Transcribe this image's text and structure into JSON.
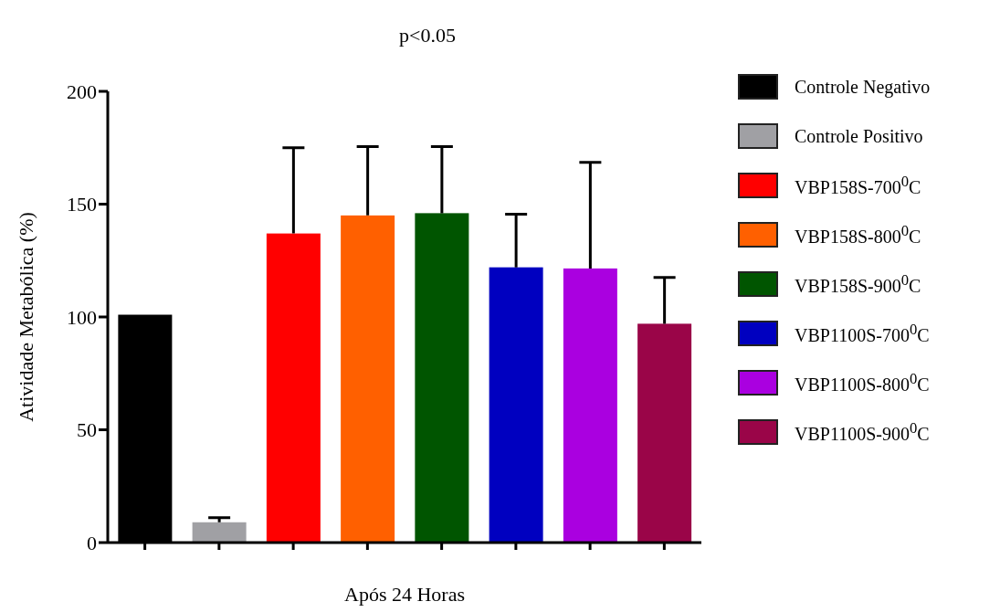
{
  "chart_data": {
    "type": "bar",
    "title": "p<0.05",
    "xlabel": "Após 24 Horas",
    "ylabel": "Atividade Metabólica (%)",
    "categories": [
      null,
      null,
      null,
      null,
      null,
      null,
      null,
      null
    ],
    "stacked": true,
    "legend": "right",
    "ylim": [
      0,
      200
    ],
    "yticks": [
      0,
      50,
      100,
      150,
      200
    ],
    "series": [
      {
        "name": "Controle Negativo",
        "color": "#000000",
        "values": [
          101,
          null,
          null,
          null,
          null,
          null,
          null,
          null
        ]
      },
      {
        "name": "Controle Positivo",
        "color": "#a0a0a4",
        "values": [
          null,
          9,
          null,
          null,
          null,
          null,
          null,
          null
        ],
        "errors": [
          null,
          [
            9,
            11
          ],
          null,
          null,
          null,
          null,
          null,
          null
        ]
      },
      {
        "name": "VBP158S-700$^{0}$C",
        "color": "#ff0000",
        "values": [
          null,
          null,
          137,
          null,
          null,
          null,
          null,
          null
        ],
        "errors": [
          null,
          null,
          [
            137,
            175
          ],
          null,
          null,
          null,
          null,
          null
        ]
      },
      {
        "name": "VBP158S-800$^{0}$C",
        "color": "#ff6000",
        "values": [
          null,
          null,
          null,
          145,
          null,
          null,
          null,
          null
        ],
        "errors": [
          null,
          null,
          null,
          [
            145,
            175.5
          ],
          null,
          null,
          null,
          null
        ]
      },
      {
        "name": "VBP158S-900$^{0}$C",
        "color": "#005500",
        "values": [
          null,
          null,
          null,
          null,
          146,
          null,
          null,
          null
        ],
        "errors": [
          null,
          null,
          null,
          null,
          [
            146,
            175.5
          ],
          null,
          null,
          null
        ]
      },
      {
        "name": "VBP1100S-700$^{0}$C",
        "color": "#0000c0",
        "values": [
          null,
          null,
          null,
          null,
          null,
          122,
          null,
          null
        ],
        "errors": [
          null,
          null,
          null,
          null,
          null,
          [
            122,
            145.5
          ],
          null,
          null
        ]
      },
      {
        "name": "VBP1100S-800$^{0}$C",
        "color": "#aa00e0",
        "values": [
          null,
          null,
          null,
          null,
          null,
          null,
          121.5,
          null
        ],
        "errors": [
          null,
          null,
          null,
          null,
          null,
          null,
          [
            121.5,
            168.5
          ],
          null
        ]
      },
      {
        "name": "VBP1100S-900$^{0}$C",
        "color": "#9a0548",
        "values": [
          null,
          null,
          null,
          null,
          null,
          null,
          null,
          97
        ],
        "errors": [
          null,
          null,
          null,
          null,
          null,
          null,
          null,
          [
            97,
            117.5
          ]
        ]
      }
    ]
  }
}
